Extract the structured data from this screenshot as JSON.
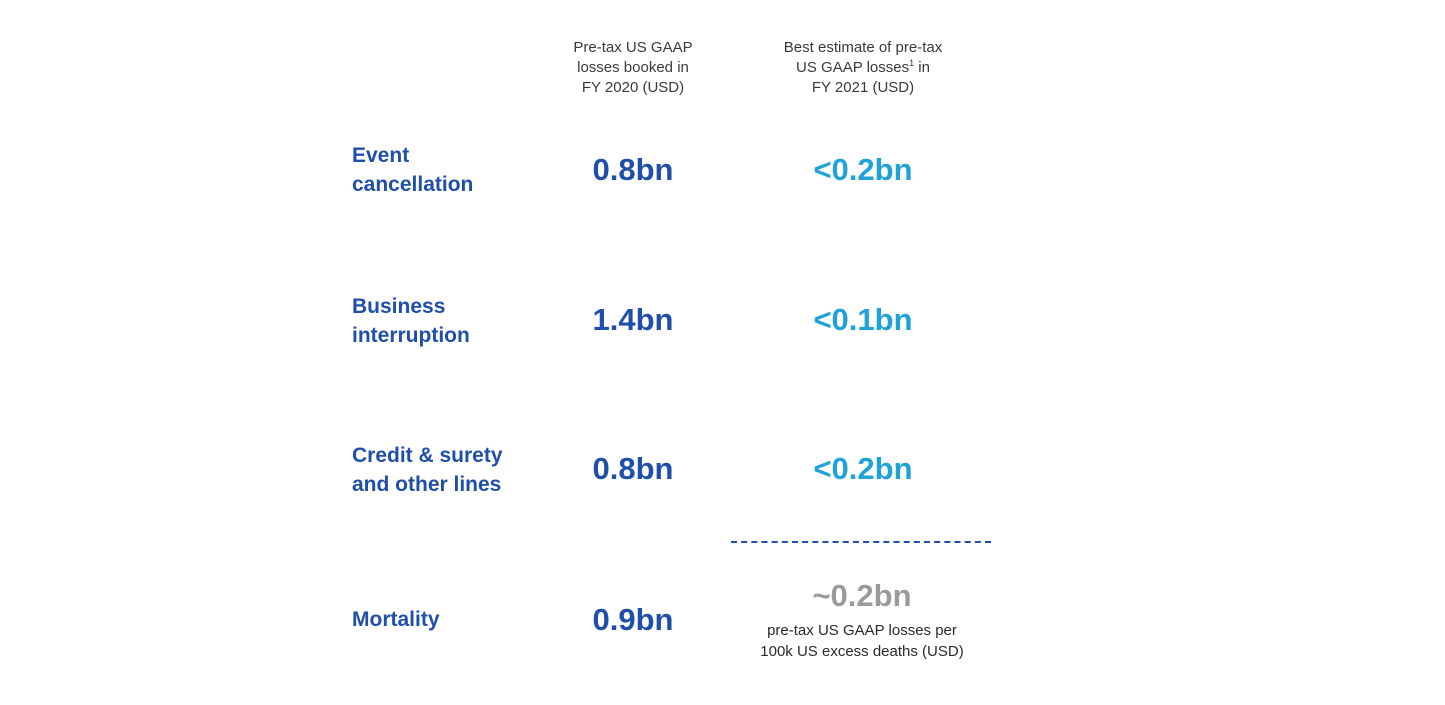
{
  "headers": {
    "col1": [
      "Pre-tax US GAAP",
      "losses booked in",
      "FY 2020 (USD)"
    ],
    "col2_line1": "Best estimate of pre-tax",
    "col2_line2_a": "US GAAP losses",
    "col2_sup": "1",
    "col2_line2_b": " in",
    "col2_line3": "FY 2021 (USD)"
  },
  "rows": [
    {
      "label": "Event\ncancellation",
      "fy2020": "0.8bn",
      "fy2021": "<0.2bn"
    },
    {
      "label": "Business\ninterruption",
      "fy2020": "1.4bn",
      "fy2021": "<0.1bn"
    },
    {
      "label": "Credit & surety\nand other lines",
      "fy2020": "0.8bn",
      "fy2021": "<0.2bn"
    },
    {
      "label": "Mortality",
      "fy2020": "0.9bn",
      "fy2021": "~0.2bn"
    }
  ],
  "mortality_note": [
    "pre-tax US GAAP losses per",
    "100k US excess deaths (USD)"
  ],
  "colors": {
    "dark_blue": "#1f4fa8",
    "light_blue": "#1ea2d8",
    "grey": "#9a9a9a"
  }
}
